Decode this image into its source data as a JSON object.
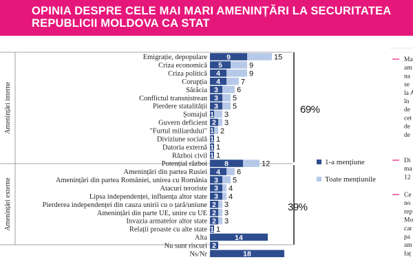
{
  "title": "OPINIA DESPRE CELE MAI MARI AMENINȚĂRI LA SECURITATEA REPUBLICII MOLDOVA CA STAT",
  "colors": {
    "header": "#e6177a",
    "dark_series": "#2e4d8f",
    "light_series": "#b7c9e8",
    "accent_dash": "#e6177a"
  },
  "chart_data": {
    "type": "bar",
    "title": "",
    "categories": [
      "Emigrație, depopulare",
      "Criza economică",
      "Criza politică",
      "Corupția",
      "Sărăcia",
      "Conflictul transnistrean",
      "Pierdere statalității",
      "Șomajul",
      "Guvern deficient",
      "\"Furtul miliardului\"",
      "Diviziune socială",
      "Datoria externă",
      "Război civil",
      "Potențial război",
      "Amenințări din partea Rusiei",
      "Amenințări din partea României, unirea cu România",
      "Atacuri teroriste",
      "Lipsa independenței, influența altor state",
      "Pierderea independenței din cauza unirii cu o țară/uniune",
      "Amenințări din parte UE, unire cu UE",
      "Invazia armatelor altor state",
      "Relații proaste cu alte state",
      "Alta",
      "Nu sunt riscuri",
      "Ns/Nr"
    ],
    "series": [
      {
        "name": "1-a mențiune",
        "values": [
          9,
          5,
          4,
          4,
          3,
          3,
          3,
          1,
          2,
          1,
          1,
          1,
          1,
          8,
          4,
          3,
          3,
          3,
          2,
          2,
          2,
          1,
          14,
          2,
          18
        ]
      },
      {
        "name": "Toate mențiunile",
        "values": [
          15,
          9,
          9,
          7,
          6,
          5,
          5,
          3,
          3,
          2,
          1,
          1,
          1,
          12,
          6,
          5,
          4,
          4,
          3,
          3,
          3,
          1,
          null,
          null,
          null
        ]
      }
    ],
    "groups": [
      {
        "label": "Amenințări interne",
        "percent": "69%"
      },
      {
        "label": "Amenințări externe",
        "percent": "39%"
      }
    ],
    "legend": [
      "1-a mențiune",
      "Toate mențiunile"
    ]
  },
  "side_notes": [
    {
      "lines": [
        "Ma",
        "am",
        "na",
        "se",
        "la A",
        "în",
        "de",
        "cet",
        "de",
        "de"
      ]
    },
    {
      "lines": [
        "Di",
        "ma",
        "12"
      ]
    },
    {
      "lines": [
        "Ce",
        "no",
        "rep",
        "Mo",
        "car",
        "pa",
        "am",
        "faț"
      ]
    }
  ]
}
